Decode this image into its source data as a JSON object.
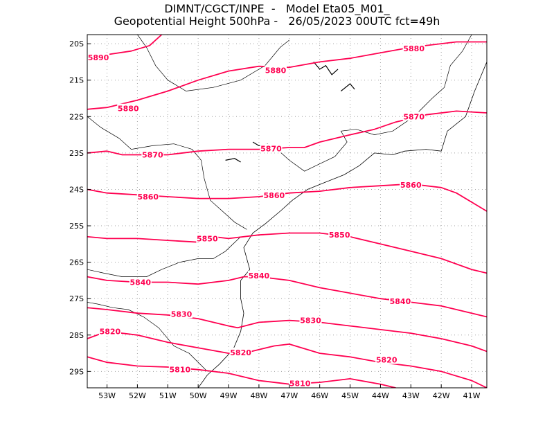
{
  "title": {
    "line1": "DIMNT/CGCT/INPE  -   Model Eta05_M01_",
    "line2": "Geopotential Height 500hPa -   26/05/2023 00UTC fct=49h"
  },
  "colors": {
    "contour": "#ff0050",
    "coast": "#000000",
    "grid": "#a0a0a0"
  },
  "map": {
    "lon_range": [
      -53.65,
      -40.5
    ],
    "lat_range": [
      -29.45,
      -19.75
    ],
    "lat_ticks": [
      {
        "value": -20,
        "label": "20S"
      },
      {
        "value": -21,
        "label": "21S"
      },
      {
        "value": -22,
        "label": "22S"
      },
      {
        "value": -23,
        "label": "23S"
      },
      {
        "value": -24,
        "label": "24S"
      },
      {
        "value": -25,
        "label": "25S"
      },
      {
        "value": -26,
        "label": "26S"
      },
      {
        "value": -27,
        "label": "27S"
      },
      {
        "value": -28,
        "label": "28S"
      },
      {
        "value": -29,
        "label": "29S"
      }
    ],
    "lon_ticks": [
      {
        "value": -53,
        "label": "53W"
      },
      {
        "value": -52,
        "label": "52W"
      },
      {
        "value": -51,
        "label": "51W"
      },
      {
        "value": -50,
        "label": "50W"
      },
      {
        "value": -49,
        "label": "49W"
      },
      {
        "value": -48,
        "label": "48W"
      },
      {
        "value": -47,
        "label": "47W"
      },
      {
        "value": -46,
        "label": "46W"
      },
      {
        "value": -45,
        "label": "45W"
      },
      {
        "value": -44,
        "label": "44W"
      },
      {
        "value": -43,
        "label": "43W"
      },
      {
        "value": -42,
        "label": "42W"
      },
      {
        "value": -41,
        "label": "41W"
      }
    ],
    "contours": [
      {
        "level": "5890",
        "points": [
          [
            -53.65,
            -20.4
          ],
          [
            -53,
            -20.3
          ],
          [
            -52.2,
            -20.2
          ],
          [
            -51.6,
            -20.05
          ],
          [
            -51.2,
            -19.75
          ]
        ],
        "labels": [
          [
            -53.45,
            -20.38
          ]
        ]
      },
      {
        "level": "5880",
        "points": [
          [
            -53.65,
            -21.8
          ],
          [
            -53,
            -21.75
          ],
          [
            -52,
            -21.55
          ],
          [
            -51,
            -21.3
          ],
          [
            -50,
            -21
          ],
          [
            -49,
            -20.75
          ],
          [
            -48,
            -20.62
          ],
          [
            -47,
            -20.65
          ],
          [
            -46,
            -20.5
          ],
          [
            -45,
            -20.4
          ],
          [
            -44,
            -20.25
          ],
          [
            -43,
            -20.1
          ],
          [
            -42,
            -20
          ],
          [
            -41.5,
            -19.95
          ],
          [
            -40.5,
            -19.95
          ]
        ],
        "labels": [
          [
            -52.3,
            -21.78
          ],
          [
            -47.45,
            -20.73
          ],
          [
            -42.9,
            -20.13
          ]
        ]
      },
      {
        "level": "5870",
        "points": [
          [
            -53.65,
            -23.0
          ],
          [
            -53,
            -22.95
          ],
          [
            -52.5,
            -23.05
          ],
          [
            -51,
            -23.05
          ],
          [
            -50,
            -22.95
          ],
          [
            -49,
            -22.9
          ],
          [
            -48,
            -22.9
          ],
          [
            -47,
            -22.85
          ],
          [
            -46.5,
            -22.85
          ],
          [
            -46,
            -22.7
          ],
          [
            -45,
            -22.5
          ],
          [
            -44.2,
            -22.35
          ],
          [
            -43.5,
            -22.15
          ],
          [
            -42.5,
            -21.95
          ],
          [
            -41.5,
            -21.85
          ],
          [
            -40.5,
            -21.9
          ]
        ],
        "labels": [
          [
            -51.5,
            -23.05
          ],
          [
            -47.6,
            -22.88
          ],
          [
            -42.9,
            -22.0
          ]
        ]
      },
      {
        "level": "5860",
        "points": [
          [
            -53.65,
            -24.0
          ],
          [
            -53,
            -24.1
          ],
          [
            -52,
            -24.15
          ],
          [
            -51,
            -24.2
          ],
          [
            -50,
            -24.25
          ],
          [
            -49,
            -24.25
          ],
          [
            -48,
            -24.2
          ],
          [
            -47,
            -24.1
          ],
          [
            -46,
            -24.05
          ],
          [
            -45,
            -23.95
          ],
          [
            -44,
            -23.9
          ],
          [
            -43,
            -23.85
          ],
          [
            -42,
            -23.95
          ],
          [
            -41.5,
            -24.1
          ],
          [
            -40.5,
            -24.6
          ]
        ],
        "labels": [
          [
            -51.65,
            -24.2
          ],
          [
            -47.5,
            -24.16
          ],
          [
            -43.0,
            -23.88
          ]
        ]
      },
      {
        "level": "5850",
        "points": [
          [
            -53.65,
            -25.3
          ],
          [
            -53,
            -25.35
          ],
          [
            -52,
            -25.35
          ],
          [
            -51,
            -25.4
          ],
          [
            -50,
            -25.45
          ],
          [
            -49.5,
            -25.3
          ],
          [
            -49,
            -25.35
          ],
          [
            -48,
            -25.25
          ],
          [
            -47,
            -25.2
          ],
          [
            -46,
            -25.2
          ],
          [
            -45,
            -25.3
          ],
          [
            -44,
            -25.5
          ],
          [
            -43,
            -25.7
          ],
          [
            -42,
            -25.9
          ],
          [
            -41,
            -26.2
          ],
          [
            -40.5,
            -26.3
          ]
        ],
        "labels": [
          [
            -49.7,
            -25.35
          ],
          [
            -45.35,
            -25.25
          ]
        ]
      },
      {
        "level": "5840",
        "points": [
          [
            -53.65,
            -26.4
          ],
          [
            -53,
            -26.5
          ],
          [
            -52,
            -26.55
          ],
          [
            -51,
            -26.55
          ],
          [
            -50,
            -26.6
          ],
          [
            -49,
            -26.5
          ],
          [
            -48.5,
            -26.4
          ],
          [
            -48,
            -26.4
          ],
          [
            -47,
            -26.5
          ],
          [
            -46,
            -26.7
          ],
          [
            -45,
            -26.85
          ],
          [
            -44,
            -27.0
          ],
          [
            -43,
            -27.1
          ],
          [
            -42,
            -27.2
          ],
          [
            -41,
            -27.4
          ],
          [
            -40.5,
            -27.5
          ]
        ],
        "labels": [
          [
            -51.9,
            -26.55
          ],
          [
            -48.0,
            -26.37
          ],
          [
            -43.35,
            -27.07
          ]
        ]
      },
      {
        "level": "5830",
        "points": [
          [
            -53.65,
            -27.25
          ],
          [
            -53,
            -27.3
          ],
          [
            -52,
            -27.4
          ],
          [
            -51,
            -27.45
          ],
          [
            -50,
            -27.55
          ],
          [
            -49,
            -27.75
          ],
          [
            -48.7,
            -27.8
          ],
          [
            -48,
            -27.65
          ],
          [
            -47,
            -27.6
          ],
          [
            -46,
            -27.65
          ],
          [
            -45,
            -27.75
          ],
          [
            -44,
            -27.85
          ],
          [
            -43,
            -27.95
          ],
          [
            -42,
            -28.1
          ],
          [
            -41,
            -28.3
          ],
          [
            -40.5,
            -28.45
          ]
        ],
        "labels": [
          [
            -50.55,
            -27.42
          ],
          [
            -46.3,
            -27.6
          ]
        ]
      },
      {
        "level": "5820",
        "points": [
          [
            -53.65,
            -28.1
          ],
          [
            -53,
            -27.9
          ],
          [
            -52,
            -28.0
          ],
          [
            -51,
            -28.2
          ],
          [
            -50,
            -28.35
          ],
          [
            -49,
            -28.5
          ],
          [
            -48.5,
            -28.5
          ],
          [
            -47.5,
            -28.3
          ],
          [
            -47,
            -28.25
          ],
          [
            -46,
            -28.5
          ],
          [
            -45,
            -28.6
          ],
          [
            -44,
            -28.75
          ],
          [
            -43,
            -28.85
          ],
          [
            -42,
            -29.0
          ],
          [
            -41,
            -29.25
          ],
          [
            -40.5,
            -29.45
          ]
        ],
        "labels": [
          [
            -52.9,
            -27.9
          ],
          [
            -48.6,
            -28.48
          ],
          [
            -43.8,
            -28.68
          ]
        ]
      },
      {
        "level": "5810",
        "points": [
          [
            -53.65,
            -28.6
          ],
          [
            -53,
            -28.75
          ],
          [
            -52,
            -28.85
          ],
          [
            -51,
            -28.88
          ],
          [
            -50,
            -28.95
          ],
          [
            -49,
            -29.05
          ],
          [
            -48,
            -29.25
          ],
          [
            -47,
            -29.35
          ],
          [
            -46,
            -29.3
          ],
          [
            -45,
            -29.2
          ],
          [
            -44,
            -29.35
          ],
          [
            -43.5,
            -29.45
          ]
        ],
        "labels": [
          [
            -50.6,
            -28.95
          ],
          [
            -46.65,
            -29.33
          ]
        ]
      }
    ],
    "coastline": [
      [
        [
          -48.3,
          -26.2
        ],
        [
          -48.5,
          -25.6
        ],
        [
          -48.2,
          -25.2
        ],
        [
          -47.8,
          -24.95
        ],
        [
          -47.3,
          -24.6
        ],
        [
          -46.9,
          -24.3
        ],
        [
          -46.4,
          -24.0
        ],
        [
          -45.8,
          -23.8
        ],
        [
          -45.2,
          -23.6
        ],
        [
          -44.7,
          -23.35
        ],
        [
          -44.2,
          -23.0
        ],
        [
          -43.6,
          -23.05
        ],
        [
          -43.2,
          -22.95
        ],
        [
          -42.5,
          -22.9
        ],
        [
          -42.0,
          -22.95
        ],
        [
          -41.8,
          -22.4
        ],
        [
          -41.2,
          -22.0
        ],
        [
          -40.9,
          -21.3
        ],
        [
          -40.7,
          -20.9
        ],
        [
          -40.5,
          -20.5
        ]
      ],
      [
        [
          -48.3,
          -26.2
        ],
        [
          -48.6,
          -26.5
        ],
        [
          -48.6,
          -27.0
        ],
        [
          -48.5,
          -27.4
        ],
        [
          -48.6,
          -27.9
        ],
        [
          -48.85,
          -28.4
        ],
        [
          -49.3,
          -28.8
        ],
        [
          -49.7,
          -29.1
        ],
        [
          -50.0,
          -29.45
        ]
      ]
    ],
    "borders": [
      [
        [
          -53.65,
          -26.2
        ],
        [
          -53.1,
          -26.3
        ],
        [
          -52.5,
          -26.4
        ],
        [
          -51.7,
          -26.4
        ],
        [
          -51.2,
          -26.2
        ],
        [
          -50.6,
          -26.0
        ],
        [
          -50.0,
          -25.9
        ],
        [
          -49.5,
          -25.9
        ],
        [
          -49.1,
          -25.7
        ],
        [
          -48.6,
          -25.3
        ]
      ],
      [
        [
          -53.65,
          -27.1
        ],
        [
          -53.3,
          -27.15
        ],
        [
          -52.8,
          -27.25
        ],
        [
          -52.3,
          -27.3
        ],
        [
          -51.8,
          -27.5
        ],
        [
          -51.3,
          -27.8
        ],
        [
          -50.8,
          -28.3
        ],
        [
          -50.3,
          -28.5
        ],
        [
          -49.7,
          -29.0
        ]
      ],
      [
        [
          -53.65,
          -22.0
        ],
        [
          -53.2,
          -22.3
        ],
        [
          -52.6,
          -22.6
        ],
        [
          -52.2,
          -22.9
        ],
        [
          -51.5,
          -22.8
        ],
        [
          -50.8,
          -22.75
        ],
        [
          -50.2,
          -22.9
        ],
        [
          -49.9,
          -23.2
        ],
        [
          -49.8,
          -23.7
        ],
        [
          -49.6,
          -24.3
        ],
        [
          -49.2,
          -24.6
        ],
        [
          -48.8,
          -24.9
        ],
        [
          -48.4,
          -25.1
        ]
      ],
      [
        [
          -52.0,
          -19.75
        ],
        [
          -51.7,
          -20.1
        ],
        [
          -51.4,
          -20.6
        ],
        [
          -51.0,
          -21.0
        ],
        [
          -50.4,
          -21.3
        ],
        [
          -49.5,
          -21.2
        ],
        [
          -48.6,
          -21.0
        ],
        [
          -47.8,
          -20.6
        ],
        [
          -47.3,
          -20.1
        ],
        [
          -47.0,
          -19.9
        ]
      ],
      [
        [
          -45.1,
          -22.7
        ],
        [
          -45.3,
          -22.4
        ],
        [
          -44.8,
          -22.35
        ],
        [
          -44.2,
          -22.5
        ],
        [
          -43.6,
          -22.4
        ],
        [
          -42.9,
          -22.0
        ],
        [
          -42.3,
          -21.5
        ],
        [
          -41.9,
          -21.2
        ],
        [
          -41.7,
          -20.6
        ],
        [
          -41.3,
          -20.2
        ],
        [
          -41.0,
          -19.75
        ]
      ],
      [
        [
          -47.4,
          -22.9
        ],
        [
          -47.0,
          -23.2
        ],
        [
          -46.5,
          -23.5
        ],
        [
          -46.0,
          -23.3
        ],
        [
          -45.5,
          -23.1
        ],
        [
          -45.1,
          -22.7
        ]
      ]
    ],
    "reservoirs": [
      [
        [
          -48.2,
          -22.7
        ],
        [
          -48.0,
          -22.8
        ],
        [
          -47.7,
          -22.75
        ]
      ],
      [
        [
          -49.1,
          -23.2
        ],
        [
          -48.8,
          -23.15
        ],
        [
          -48.6,
          -23.25
        ]
      ],
      [
        [
          -46.2,
          -20.5
        ],
        [
          -46.0,
          -20.7
        ],
        [
          -45.8,
          -20.6
        ],
        [
          -45.6,
          -20.85
        ],
        [
          -45.4,
          -20.7
        ]
      ],
      [
        [
          -45.3,
          -21.3
        ],
        [
          -45.0,
          -21.1
        ],
        [
          -44.85,
          -21.25
        ]
      ]
    ]
  }
}
